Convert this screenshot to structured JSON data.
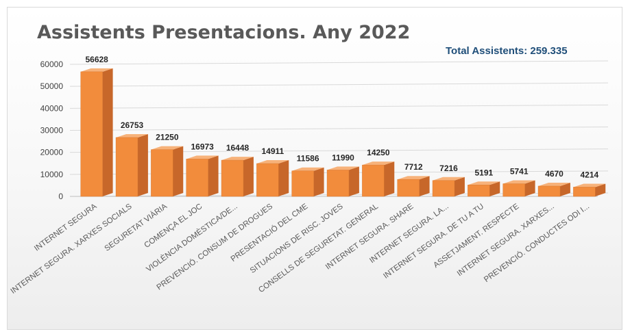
{
  "colors": {
    "bar_front": "#f28c3c",
    "bar_side": "#c7672a",
    "bar_top": "#f7b27a",
    "title": "#595959",
    "total": "#1f4e79",
    "grid": "#d9d9d9"
  },
  "header": {
    "title": "Assistents Presentacions. Any 2022",
    "total": "Total Assistents: 259.335"
  },
  "chart_data": {
    "type": "bar",
    "title": "Assistents Presentacions. Any 2022",
    "subtitle": "Total Assistents: 259.335",
    "xlabel": "",
    "ylabel": "",
    "ylim": [
      0,
      60000
    ],
    "yticks": [
      0,
      10000,
      20000,
      30000,
      40000,
      50000,
      60000
    ],
    "ytick_labels": [
      "0",
      "10000",
      "20000",
      "30000",
      "40000",
      "50000",
      "60000"
    ],
    "grid": true,
    "legend": "none",
    "style": "3d-column",
    "categories": [
      "INTERNET SEGURA",
      "INTERNET SEGURA. XARXES SOCIALS",
      "SEGURETAT VIÀRIA",
      "COMENÇA EL JOC",
      "VIOLÈNCIA DOMÈSTICA/DE...",
      "PREVENCIÓ. CONSUM DE DROGUES",
      "PRESENTACIÓ DEL CME",
      "SITUACIONS DE RISC. JOVES",
      "CONSELLS DE SEGURETAT. GENERAL",
      "INTERNET SEGURA. SHARE",
      "INTERNET SEGURA. LA...",
      "INTERNET SEGURA. DE TU A TU",
      "ASSETJAMENT. RESPECTE",
      "INTERNET SEGURA. XARXES...",
      "PREVENCIÓ. CONDUCTES ODI I..."
    ],
    "values": [
      56628,
      26753,
      21250,
      16973,
      16448,
      14911,
      11586,
      11990,
      14250,
      7712,
      7216,
      5191,
      5741,
      4670,
      4214
    ],
    "data_labels": [
      "56628",
      "26753",
      "21250",
      "16973",
      "16448",
      "14911",
      "11586",
      "11990",
      "14250",
      "7712",
      "7216",
      "5191",
      "5741",
      "4670",
      "4214"
    ]
  }
}
